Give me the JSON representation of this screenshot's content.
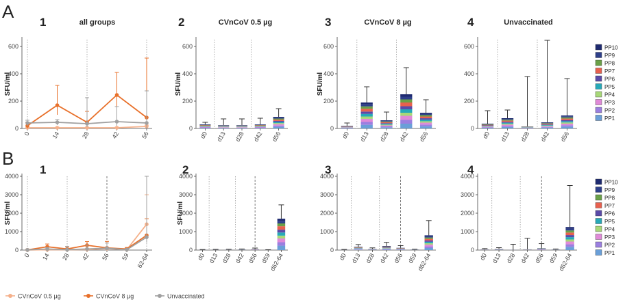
{
  "figure": {
    "row_labels": [
      "A",
      "B"
    ],
    "ylabel": "SFU/ml",
    "pp_legend": [
      "PP10",
      "PP9",
      "PP8",
      "PP7",
      "PP6",
      "PP5",
      "PP4",
      "PP3",
      "PP2",
      "PP1"
    ],
    "bottom_legend": [
      "CVnCoV 0.5 µg",
      "CVnCoV 8 µg",
      "Unvaccinated"
    ],
    "colors": {
      "cvncov_0_5": "#f5b08a",
      "cvncov_8": "#e8702a",
      "unvaccinated": "#a0a0a0",
      "pp": [
        "#6a9fd8",
        "#9b7fe0",
        "#e08ad8",
        "#a8d878",
        "#27a9b8",
        "#5a4aa8",
        "#e8604e",
        "#6aa048",
        "#2e3f8a",
        "#1e2a70"
      ]
    }
  },
  "chart_data": [
    {
      "id": "A1",
      "number": "1",
      "title": "all groups",
      "type": "line",
      "categories": [
        "0",
        "14",
        "28",
        "42",
        "56"
      ],
      "ylim": [
        0,
        650
      ],
      "yticks": [
        0,
        200,
        400,
        600
      ],
      "vlines": [
        {
          "at": 0,
          "style": "dotted"
        },
        {
          "at": 2,
          "style": "dotted"
        },
        {
          "at": 4,
          "style": "dotted"
        }
      ],
      "series": [
        {
          "name": "CVnCoV 0.5 µg",
          "color": "#f5b08a",
          "values": [
            5,
            5,
            5,
            5,
            15
          ],
          "err_up": [
            5,
            5,
            5,
            5,
            10
          ],
          "err_dn": [
            5,
            5,
            5,
            5,
            10
          ]
        },
        {
          "name": "CVnCoV 8 µg",
          "color": "#e8702a",
          "values": [
            20,
            170,
            45,
            245,
            80
          ],
          "err_up": [
            25,
            145,
            80,
            165,
            435
          ],
          "err_dn": [
            20,
            70,
            35,
            100,
            70
          ]
        },
        {
          "name": "Unvaccinated",
          "color": "#a0a0a0",
          "values": [
            40,
            45,
            35,
            50,
            40
          ],
          "err_up": [
            20,
            20,
            190,
            110,
            235
          ],
          "err_dn": [
            20,
            20,
            25,
            30,
            35
          ]
        }
      ]
    },
    {
      "id": "A2",
      "number": "2",
      "title": "CVnCoV 0.5 µg",
      "type": "bar",
      "categories": [
        "d0",
        "d13",
        "d28",
        "d42",
        "d56"
      ],
      "ylim": [
        0,
        650
      ],
      "yticks": [
        0,
        200,
        400,
        600
      ],
      "vlines": [
        {
          "at": 0.5,
          "style": "dotted"
        },
        {
          "at": 2.5,
          "style": "dotted"
        }
      ],
      "totals": [
        30,
        25,
        25,
        30,
        85
      ],
      "err": [
        15,
        45,
        45,
        45,
        60
      ]
    },
    {
      "id": "A3",
      "number": "3",
      "title": "CVnCoV 8 µg",
      "type": "bar",
      "categories": [
        "d0",
        "d13",
        "d28",
        "d42",
        "d56"
      ],
      "ylim": [
        0,
        650
      ],
      "yticks": [
        0,
        200,
        400,
        600
      ],
      "vlines": [
        {
          "at": 0.5,
          "style": "dotted"
        },
        {
          "at": 2.5,
          "style": "dotted"
        }
      ],
      "totals": [
        20,
        190,
        60,
        250,
        115
      ],
      "err": [
        20,
        115,
        60,
        195,
        95
      ]
    },
    {
      "id": "A4",
      "number": "4",
      "title": "Unvaccinated",
      "type": "bar",
      "categories": [
        "d0",
        "d13",
        "d28",
        "d42",
        "d56"
      ],
      "ylim": [
        0,
        650
      ],
      "yticks": [
        0,
        200,
        400,
        600
      ],
      "vlines": [
        {
          "at": 0.5,
          "style": "dotted"
        },
        {
          "at": 2.5,
          "style": "dotted"
        }
      ],
      "totals": [
        35,
        75,
        15,
        45,
        95
      ],
      "err": [
        95,
        60,
        365,
        600,
        270
      ]
    },
    {
      "id": "B1",
      "number": "1",
      "title": "",
      "type": "line",
      "categories": [
        "0",
        "14",
        "28",
        "42",
        "56",
        "59",
        "62-64"
      ],
      "ylim": [
        0,
        4000
      ],
      "yticks": [
        0,
        1000,
        2000,
        3000,
        4000
      ],
      "vlines": [
        {
          "at": 0,
          "style": "dotted"
        },
        {
          "at": 2,
          "style": "dotted"
        },
        {
          "at": 4,
          "style": "dashed"
        },
        {
          "at": 6,
          "style": "dotted"
        }
      ],
      "series": [
        {
          "name": "CVnCoV 0.5 µg",
          "color": "#f5b08a",
          "values": [
            5,
            20,
            20,
            30,
            80,
            20,
            1400
          ],
          "err_up": [
            5,
            40,
            40,
            40,
            80,
            30,
            1600
          ],
          "err_dn": [
            5,
            20,
            20,
            20,
            60,
            15,
            400
          ]
        },
        {
          "name": "CVnCoV 8 µg",
          "color": "#e8702a",
          "values": [
            10,
            180,
            60,
            260,
            120,
            60,
            800
          ],
          "err_up": [
            20,
            150,
            120,
            200,
            350,
            80,
            900
          ],
          "err_dn": [
            10,
            80,
            40,
            120,
            80,
            40,
            350
          ]
        },
        {
          "name": "Unvaccinated",
          "color": "#a0a0a0",
          "values": [
            10,
            60,
            20,
            60,
            100,
            20,
            700
          ],
          "err_up": [
            20,
            80,
            180,
            220,
            280,
            40,
            3300
          ],
          "err_dn": [
            10,
            40,
            15,
            40,
            60,
            15,
            300
          ]
        }
      ]
    },
    {
      "id": "B2",
      "number": "2",
      "title": "",
      "type": "bar",
      "categories": [
        "d0",
        "d13",
        "d28",
        "d42",
        "d56",
        "d59",
        "d62-64"
      ],
      "ylim": [
        0,
        4000
      ],
      "yticks": [
        0,
        1000,
        2000,
        3000,
        4000
      ],
      "vlines": [
        {
          "at": 0.5,
          "style": "dotted"
        },
        {
          "at": 2.5,
          "style": "dotted"
        },
        {
          "at": 4,
          "style": "dashed"
        }
      ],
      "totals": [
        20,
        20,
        20,
        30,
        50,
        10,
        1700
      ],
      "err": [
        10,
        20,
        25,
        30,
        60,
        10,
        750
      ]
    },
    {
      "id": "B3",
      "number": "3",
      "title": "",
      "type": "bar",
      "categories": [
        "d0",
        "d13",
        "d28",
        "d42",
        "d56",
        "d59",
        "d62-64"
      ],
      "ylim": [
        0,
        4000
      ],
      "yticks": [
        0,
        1000,
        2000,
        3000,
        4000
      ],
      "vlines": [
        {
          "at": 0.5,
          "style": "dotted"
        },
        {
          "at": 2.5,
          "style": "dotted"
        },
        {
          "at": 4,
          "style": "dashed"
        }
      ],
      "totals": [
        20,
        180,
        60,
        220,
        120,
        30,
        800
      ],
      "err": [
        15,
        120,
        60,
        200,
        120,
        20,
        800
      ]
    },
    {
      "id": "B4",
      "number": "4",
      "title": "",
      "type": "bar",
      "categories": [
        "d0",
        "d13",
        "d28",
        "d42",
        "d56",
        "d59",
        "d62-64"
      ],
      "ylim": [
        0,
        4000
      ],
      "yticks": [
        0,
        1000,
        2000,
        3000,
        4000
      ],
      "vlines": [
        {
          "at": 0.5,
          "style": "dotted"
        },
        {
          "at": 2.5,
          "style": "dotted"
        },
        {
          "at": 4,
          "style": "dashed"
        }
      ],
      "totals": [
        40,
        70,
        15,
        40,
        100,
        30,
        1250
      ],
      "err": [
        40,
        60,
        300,
        600,
        250,
        30,
        2250
      ]
    }
  ]
}
